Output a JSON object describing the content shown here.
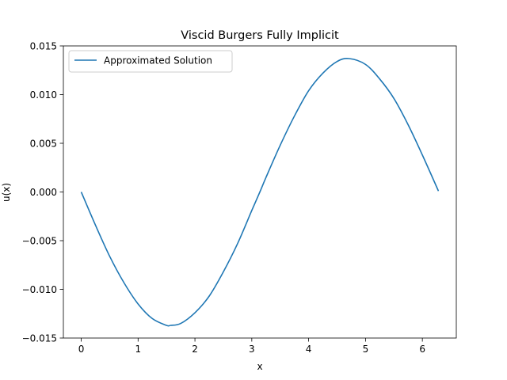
{
  "chart_data": {
    "type": "line",
    "title": "Viscid Burgers Fully Implicit",
    "xlabel": "x",
    "ylabel": "u(x)",
    "xlim": [
      -0.314,
      6.597
    ],
    "ylim": [
      -0.015,
      0.015
    ],
    "xticks": [
      0,
      1,
      2,
      3,
      4,
      5,
      6
    ],
    "xtick_labels": [
      "0",
      "1",
      "2",
      "3",
      "4",
      "5",
      "6"
    ],
    "yticks": [
      -0.015,
      -0.01,
      -0.005,
      0.0,
      0.005,
      0.01,
      0.015
    ],
    "ytick_labels": [
      "−0.015",
      "−0.010",
      "−0.005",
      "0.000",
      "0.005",
      "0.010",
      "0.015"
    ],
    "grid": false,
    "legend_position": "top-left",
    "series": [
      {
        "name": "Approximated Solution",
        "color": "#1f77b4",
        "x": [
          0.0,
          0.25,
          0.5,
          0.75,
          1.0,
          1.25,
          1.5,
          1.571,
          1.75,
          2.0,
          2.25,
          2.5,
          2.75,
          3.0,
          3.142,
          3.25,
          3.5,
          3.75,
          4.0,
          4.25,
          4.5,
          4.712,
          5.0,
          5.25,
          5.5,
          5.75,
          6.0,
          6.283
        ],
        "y": [
          0.0,
          -0.0034,
          -0.0066,
          -0.0093,
          -0.0115,
          -0.013,
          -0.0137,
          -0.0137,
          -0.0135,
          -0.0124,
          -0.0107,
          -0.0082,
          -0.0053,
          -0.0019,
          0.0,
          0.0015,
          0.0048,
          0.0078,
          0.0104,
          0.0122,
          0.0134,
          0.0137,
          0.0131,
          0.0116,
          0.0096,
          0.0069,
          0.0038,
          0.0001
        ]
      }
    ]
  }
}
